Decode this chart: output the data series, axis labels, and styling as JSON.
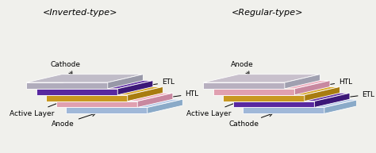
{
  "bg_color": "#f0f0ec",
  "title_left": "<Inverted-type>",
  "title_right": "<Regular-type>",
  "title_fontsize": 8.0,
  "label_fontsize": 6.5,
  "inverted_layers": [
    {
      "name": "Anode",
      "top": "#b8cce8",
      "side": "#8aaac8",
      "front": "#a0b8d8"
    },
    {
      "name": "HTL",
      "top": "#f0b0c0",
      "side": "#c888a0",
      "front": "#e0a0b0"
    },
    {
      "name": "Active Layer",
      "top": "#d8a828",
      "side": "#a87c10",
      "front": "#c89820"
    },
    {
      "name": "ETL",
      "top": "#6838a8",
      "side": "#3c1878",
      "front": "#5828a0"
    },
    {
      "name": "Cathode",
      "top": "#c0bcc8",
      "side": "#9898a8",
      "front": "#b0acbc"
    }
  ],
  "regular_layers": [
    {
      "name": "Cathode",
      "top": "#b8cce8",
      "side": "#8aaac8",
      "front": "#a0b8d8"
    },
    {
      "name": "ETL",
      "top": "#6838a8",
      "side": "#3c1878",
      "front": "#5828a0"
    },
    {
      "name": "Active Layer",
      "top": "#d8a828",
      "side": "#a87c10",
      "front": "#c89820"
    },
    {
      "name": "HTL",
      "top": "#f0b0c0",
      "side": "#c888a0",
      "front": "#e0a0b0"
    },
    {
      "name": "Anode",
      "top": "#c8c0cc",
      "side": "#a0a0b0",
      "front": "#b8b0c0"
    }
  ]
}
